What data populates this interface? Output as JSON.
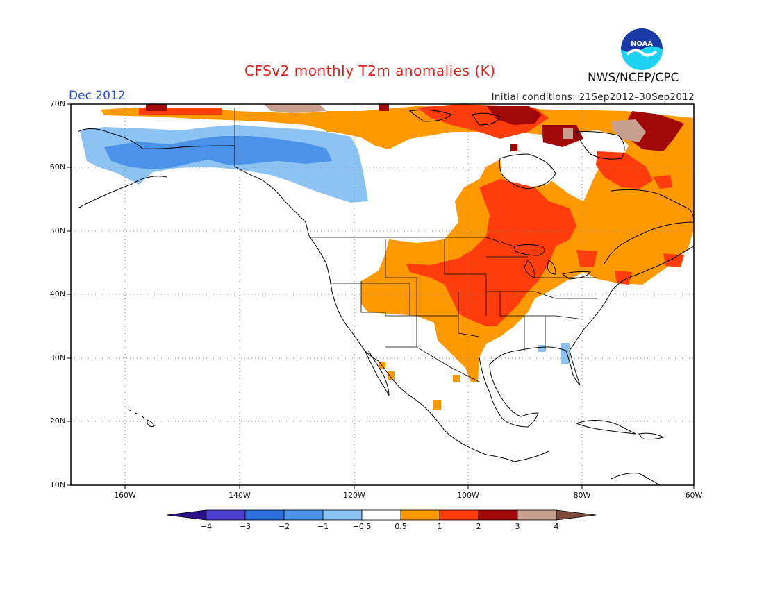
{
  "title": "CFSv2 monthly T2m anomalies (K)",
  "valid_month": "Dec 2012",
  "initial_conditions": "Initial conditions: 21Sep2012–30Sep2012",
  "organization": "NWS/NCEP/CPC",
  "logo_text": "NOAA",
  "lat_labels": [
    "70N",
    "60N",
    "50N",
    "40N",
    "30N",
    "20N",
    "10N"
  ],
  "lon_labels": [
    "160W",
    "140W",
    "120W",
    "100W",
    "80W",
    "60W"
  ],
  "colorbar": {
    "labels": [
      "−4",
      "−3",
      "−2",
      "−1",
      "−0.5",
      "0.5",
      "1",
      "2",
      "3",
      "4"
    ],
    "colors": [
      "#2a0e8a",
      "#4a3fcf",
      "#2a6fdb",
      "#4b93e8",
      "#8cc3f2",
      "#ffffff",
      "#ff9900",
      "#ff3c0c",
      "#a30808",
      "#c8a090",
      "#7a4a3a"
    ]
  }
}
